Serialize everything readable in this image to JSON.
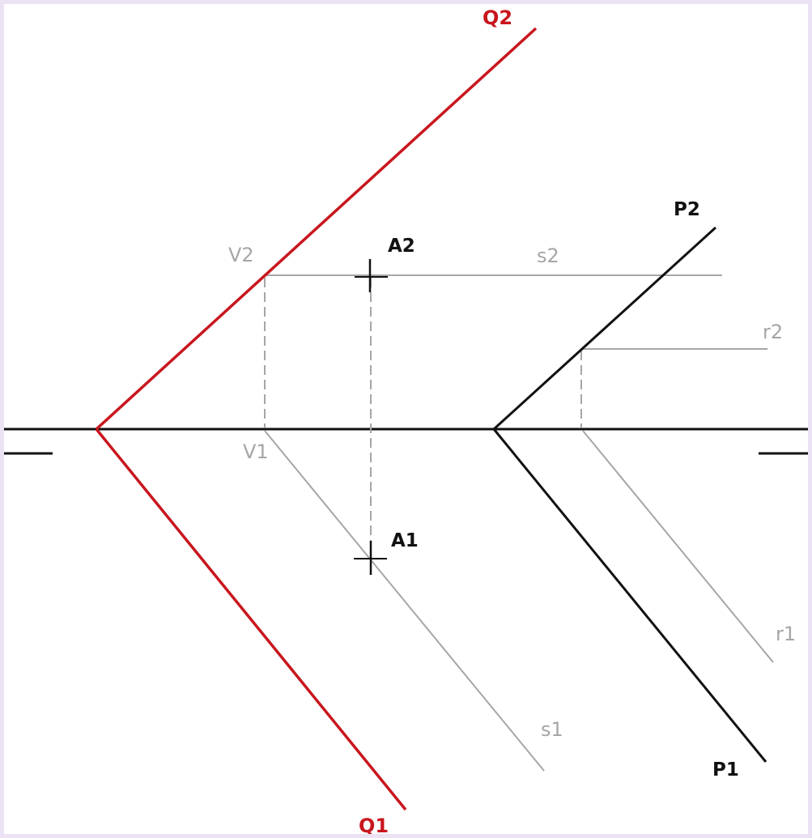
{
  "colors": {
    "plane_q": "#c8161d",
    "plane_p": "#111111",
    "construction": "#a6a6a6",
    "ground_line": "#111111",
    "background": "#ffffff",
    "frame": "#ebe2f4"
  },
  "labels": {
    "q2": "Q2",
    "q1": "Q1",
    "p2": "P2",
    "p1": "P1",
    "a2": "A2",
    "a1": "A1",
    "v2": "V2",
    "v1": "V1",
    "s2": "s2",
    "s1": "s1",
    "r2": "r2",
    "r1": "r1"
  }
}
